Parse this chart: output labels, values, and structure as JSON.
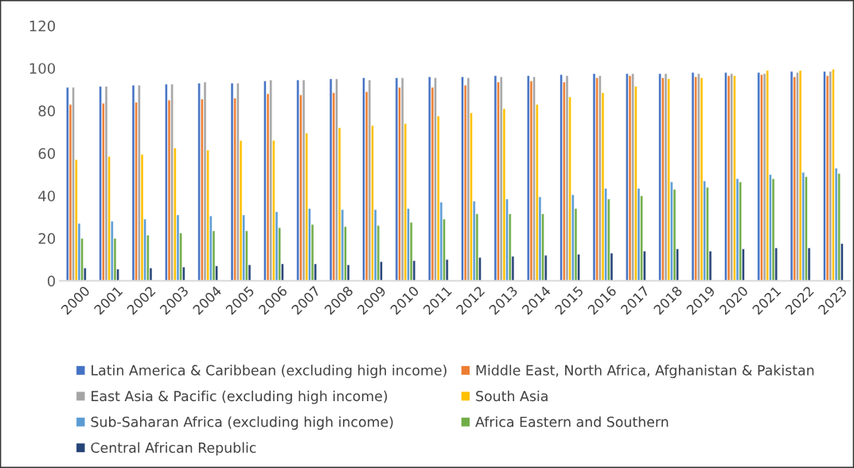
{
  "chart_data": {
    "type": "bar",
    "categories": [
      "2000",
      "2001",
      "2002",
      "2003",
      "2004",
      "2005",
      "2006",
      "2007",
      "2008",
      "2009",
      "2010",
      "2011",
      "2012",
      "2013",
      "2014",
      "2015",
      "2016",
      "2017",
      "2018",
      "2019",
      "2020",
      "2021",
      "2022",
      "2023"
    ],
    "series": [
      {
        "name": "Latin America & Caribbean (excluding high income)",
        "color": "#4472c4",
        "values": [
          91,
          91.5,
          92,
          92.5,
          93,
          93,
          94,
          94.5,
          95,
          95.5,
          95.5,
          96,
          96,
          96.5,
          96.5,
          97,
          97.5,
          97.5,
          97.5,
          98,
          98,
          98,
          98.5,
          98.5
        ]
      },
      {
        "name": "Middle East, North Africa, Afghanistan & Pakistan",
        "color": "#ed7d31",
        "values": [
          83,
          83.5,
          84,
          85,
          85.5,
          86,
          88,
          87.5,
          88.5,
          89,
          91,
          91,
          92,
          93.5,
          94,
          93.5,
          95.5,
          96.5,
          95.5,
          96,
          96.5,
          97,
          96,
          96.5
        ]
      },
      {
        "name": "East Asia & Pacific (excluding high income)",
        "color": "#a5a5a5",
        "values": [
          91,
          91.5,
          92,
          92.5,
          93.5,
          93,
          94.5,
          94.5,
          95,
          94.5,
          95.5,
          95.5,
          95.5,
          96,
          96,
          96.5,
          96.5,
          97.5,
          97.5,
          97.5,
          97.5,
          97.5,
          98,
          98.5
        ]
      },
      {
        "name": "South Asia",
        "color": "#ffc000",
        "values": [
          57,
          58.5,
          59.5,
          62.5,
          61.5,
          66,
          66,
          69.5,
          72,
          73,
          74,
          77.5,
          79,
          81,
          83,
          86.5,
          88.5,
          91.5,
          95,
          95.5,
          96.5,
          99,
          99,
          99.5
        ]
      },
      {
        "name": "Sub-Saharan Africa (excluding high income)",
        "color": "#5b9bd5",
        "values": [
          27,
          28,
          29,
          31,
          30.5,
          31,
          32.5,
          34,
          33.5,
          33.5,
          34,
          37,
          37.5,
          38.5,
          39.5,
          40.5,
          43.5,
          43.5,
          46.5,
          47,
          48,
          50,
          51,
          53
        ]
      },
      {
        "name": "Africa Eastern and Southern",
        "color": "#70ad47",
        "values": [
          20,
          20,
          21.5,
          22.5,
          23.5,
          23.5,
          25,
          26.5,
          25.5,
          26,
          27.5,
          29,
          31.5,
          31.5,
          31.5,
          34,
          38.5,
          40,
          43,
          44,
          46.5,
          48,
          49,
          50.5
        ]
      },
      {
        "name": "Central African Republic",
        "color": "#264478",
        "values": [
          6,
          5.5,
          6,
          6.5,
          7,
          7.5,
          8,
          8,
          7.5,
          9,
          9.5,
          10,
          11,
          11.5,
          12,
          12.5,
          13,
          14,
          15,
          14,
          15,
          15.5,
          15.5,
          17.5
        ]
      }
    ],
    "ylim": [
      0,
      120
    ],
    "yticks": [
      0,
      20,
      40,
      60,
      80,
      100,
      120
    ],
    "grid": false,
    "legend": "bottom"
  }
}
